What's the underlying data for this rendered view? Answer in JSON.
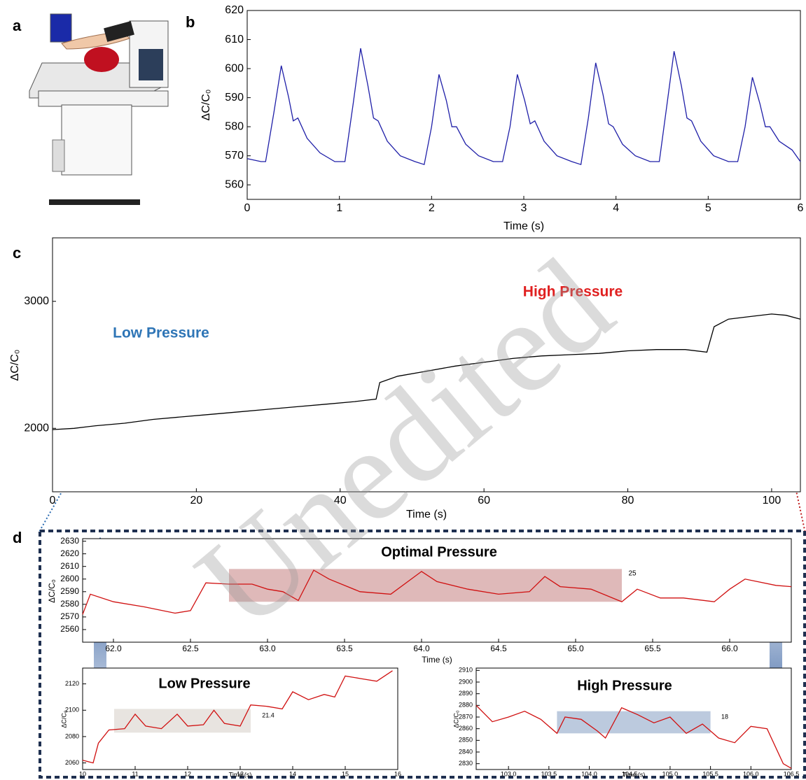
{
  "panel_labels": [
    "a",
    "b",
    "c",
    "d"
  ],
  "watermark": "Unedited",
  "chart_data": [
    {
      "type": "line",
      "xlabel": "Time (s)",
      "ylabel": "ΔC/C₀",
      "color": "#1f1fa8",
      "xlim": [
        0,
        6
      ],
      "ylim": [
        555,
        620
      ],
      "xticks": [
        0,
        1,
        2,
        3,
        4,
        5,
        6
      ],
      "yticks": [
        560,
        570,
        580,
        590,
        600,
        610,
        620
      ],
      "x": [
        0,
        0.15,
        0.2,
        0.29,
        0.37,
        0.45,
        0.5,
        0.55,
        0.65,
        0.79,
        0.95,
        1.06,
        1.15,
        1.23,
        1.31,
        1.37,
        1.42,
        1.52,
        1.66,
        1.82,
        1.92,
        2.0,
        2.08,
        2.16,
        2.22,
        2.27,
        2.37,
        2.51,
        2.67,
        2.77,
        2.85,
        2.93,
        3.01,
        3.07,
        3.12,
        3.22,
        3.36,
        3.52,
        3.62,
        3.7,
        3.78,
        3.86,
        3.92,
        3.97,
        4.07,
        4.21,
        4.37,
        4.47,
        4.55,
        4.63,
        4.71,
        4.77,
        4.82,
        4.92,
        5.06,
        5.22,
        5.32,
        5.4,
        5.48,
        5.56,
        5.62,
        5.67,
        5.77,
        5.91,
        6.0
      ],
      "values": [
        569,
        568,
        568,
        585,
        601,
        590,
        582,
        583,
        576,
        571,
        568,
        568,
        588,
        607,
        594,
        583,
        582,
        575,
        570,
        568,
        567,
        580,
        598,
        589,
        580,
        580,
        574,
        570,
        568,
        568,
        580,
        598,
        589,
        581,
        582,
        575,
        570,
        568,
        567,
        583,
        602,
        591,
        581,
        580,
        574,
        570,
        568,
        568,
        587,
        606,
        594,
        583,
        582,
        575,
        570,
        568,
        568,
        580,
        597,
        588,
        580,
        580,
        575,
        572,
        568
      ]
    },
    {
      "type": "line",
      "xlabel": "Time (s)",
      "ylabel": "ΔC/C₀",
      "color": "#000000",
      "xlim": [
        0,
        104
      ],
      "ylim": [
        1500,
        3500
      ],
      "xticks": [
        0,
        20,
        40,
        60,
        80,
        100
      ],
      "yticks": [
        2000,
        3000
      ],
      "annotations": [
        "Low Pressure",
        "High Pressure"
      ],
      "x": [
        0,
        3,
        6,
        10,
        14,
        18,
        22,
        26,
        30,
        34,
        38,
        42,
        45,
        45.5,
        48,
        52,
        56,
        60,
        64,
        68,
        72,
        76,
        80,
        84,
        88,
        91,
        92,
        94,
        97,
        100,
        102,
        104
      ],
      "values": [
        1990,
        2000,
        2020,
        2040,
        2070,
        2090,
        2110,
        2130,
        2150,
        2170,
        2190,
        2210,
        2230,
        2360,
        2410,
        2450,
        2490,
        2520,
        2550,
        2570,
        2580,
        2590,
        2610,
        2620,
        2620,
        2600,
        2800,
        2860,
        2880,
        2900,
        2890,
        2860
      ]
    },
    {
      "type": "line",
      "title": "Optimal Pressure",
      "xlabel": "Time (s)",
      "ylabel": "ΔC/C₀",
      "color": "#d01010",
      "xlim": [
        61.8,
        66.4
      ],
      "ylim": [
        2550,
        2632
      ],
      "xticks": [
        {
          "value": 62,
          "label": "62.0"
        },
        62.5,
        {
          "value": 63,
          "label": "63.0"
        },
        63.5,
        {
          "value": 64,
          "label": "64.0"
        },
        64.5,
        {
          "value": 65,
          "label": "65.0"
        },
        65.5,
        {
          "value": 66,
          "label": "66.0"
        }
      ],
      "yticks": [
        2560,
        2570,
        2580,
        2590,
        2600,
        2610,
        2620,
        2630
      ],
      "annotations": [
        "25"
      ],
      "highlight": {
        "x": [
          62.75,
          65.3
        ],
        "y": [
          2582,
          2608
        ],
        "color": "#c98a8a"
      },
      "x": [
        61.8,
        61.85,
        62.0,
        62.2,
        62.4,
        62.5,
        62.6,
        62.75,
        62.9,
        63.0,
        63.1,
        63.2,
        63.3,
        63.4,
        63.6,
        63.8,
        64.0,
        64.1,
        64.3,
        64.5,
        64.7,
        64.8,
        64.9,
        65.1,
        65.3,
        65.4,
        65.55,
        65.7,
        65.9,
        66.0,
        66.1,
        66.3,
        66.4
      ],
      "values": [
        2572,
        2588,
        2582,
        2578,
        2573,
        2575,
        2597,
        2596,
        2596,
        2592,
        2590,
        2583,
        2607,
        2600,
        2590,
        2588,
        2606,
        2598,
        2592,
        2588,
        2590,
        2602,
        2594,
        2592,
        2582,
        2592,
        2585,
        2585,
        2582,
        2592,
        2600,
        2595,
        2594
      ]
    },
    {
      "type": "line",
      "title": "Low Pressure",
      "xlabel": "Time (s)",
      "ylabel": "ΔC/C₀",
      "color": "#d01010",
      "xlim": [
        10,
        16
      ],
      "ylim": [
        2055,
        2132
      ],
      "xticks": [
        10,
        11,
        12,
        13,
        14,
        15,
        16
      ],
      "yticks": [
        2060,
        2080,
        2100,
        2120
      ],
      "annotations": [
        "21.4"
      ],
      "highlight": {
        "x": [
          10.6,
          13.2
        ],
        "y": [
          2083,
          2101
        ],
        "color": "#d8d2cc"
      },
      "x": [
        10,
        10.2,
        10.3,
        10.5,
        10.8,
        11,
        11.2,
        11.5,
        11.8,
        12,
        12.3,
        12.5,
        12.7,
        13,
        13.2,
        13.5,
        13.8,
        14,
        14.3,
        14.6,
        14.8,
        15,
        15.3,
        15.6,
        15.9
      ],
      "values": [
        2062,
        2060,
        2075,
        2085,
        2086,
        2097,
        2088,
        2086,
        2097,
        2088,
        2089,
        2100,
        2090,
        2088,
        2104,
        2103,
        2101,
        2114,
        2108,
        2112,
        2110,
        2126,
        2124,
        2122,
        2130
      ]
    },
    {
      "type": "line",
      "title": "High Pressure",
      "xlabel": "Time (s)",
      "ylabel": "ΔC/C₀",
      "color": "#d01010",
      "xlim": [
        102.6,
        106.5
      ],
      "ylim": [
        2825,
        2912
      ],
      "xticks": [
        {
          "value": 103,
          "label": "103.0"
        },
        103.5,
        {
          "value": 104,
          "label": "104.0"
        },
        104.5,
        {
          "value": 105,
          "label": "105.0"
        },
        105.5,
        {
          "value": 106,
          "label": "106.0"
        },
        106.5
      ],
      "yticks": [
        2830,
        2840,
        2850,
        2860,
        2870,
        2880,
        2890,
        2900,
        2910
      ],
      "annotations": [
        "18"
      ],
      "highlight": {
        "x": [
          103.6,
          105.5
        ],
        "y": [
          2856,
          2875
        ],
        "color": "#8fa6c8"
      },
      "x": [
        102.6,
        102.8,
        103.0,
        103.2,
        103.4,
        103.6,
        103.7,
        103.9,
        104.1,
        104.2,
        104.4,
        104.6,
        104.8,
        105.0,
        105.2,
        105.4,
        105.6,
        105.8,
        106.0,
        106.2,
        106.4,
        106.5
      ],
      "values": [
        2880,
        2866,
        2870,
        2875,
        2868,
        2856,
        2870,
        2868,
        2858,
        2852,
        2878,
        2872,
        2865,
        2870,
        2856,
        2864,
        2852,
        2848,
        2862,
        2860,
        2830,
        2826
      ]
    }
  ]
}
